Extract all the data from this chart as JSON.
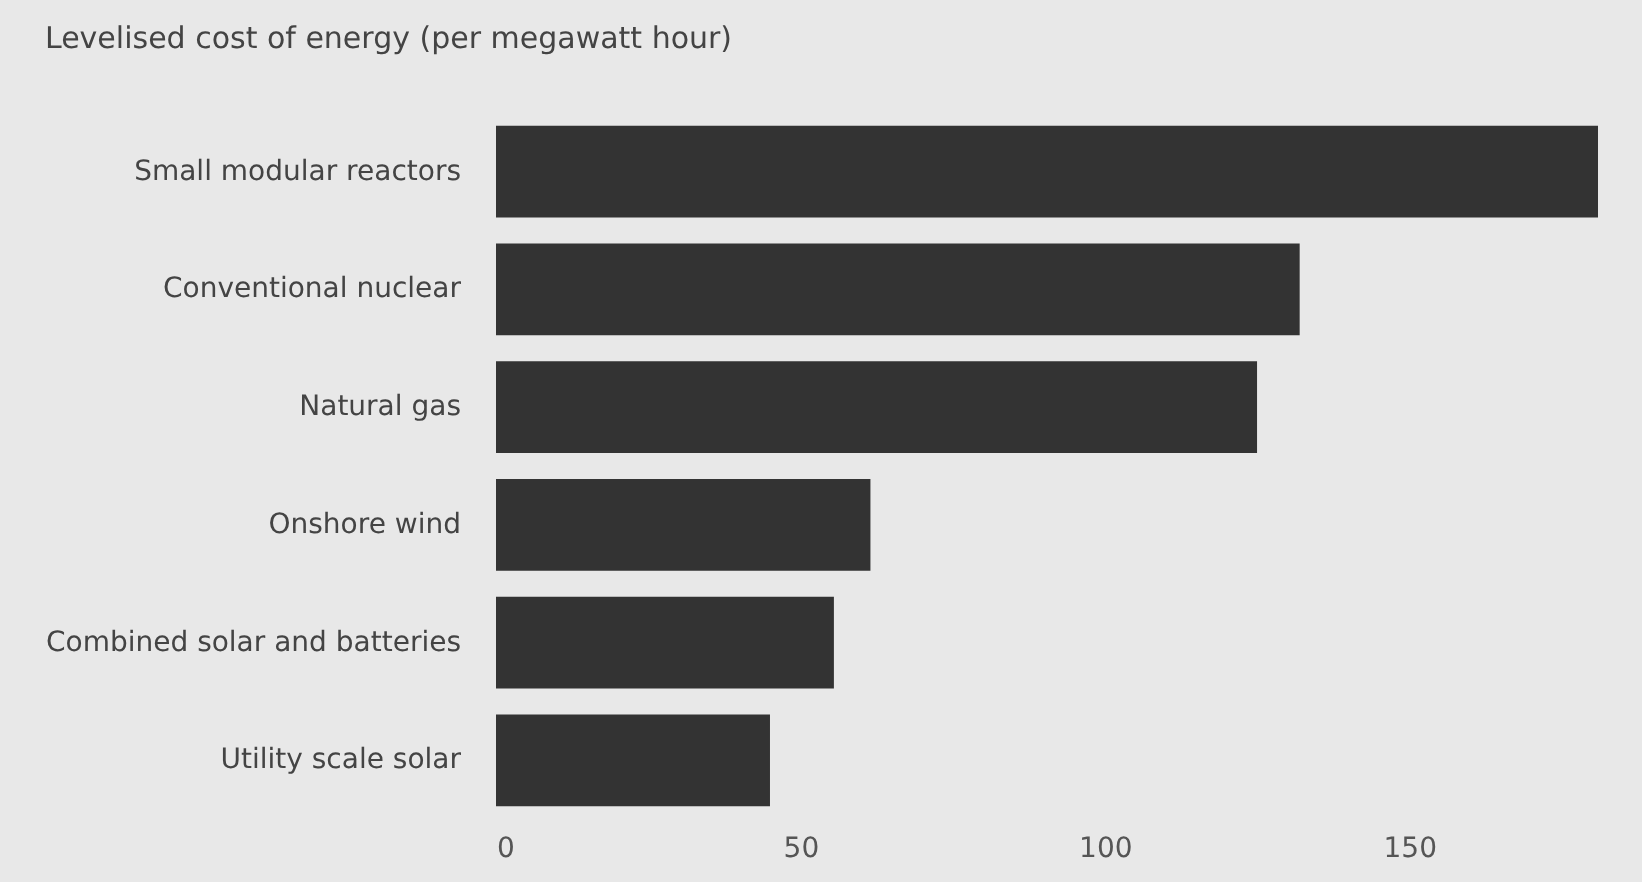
{
  "chart_data": {
    "type": "bar",
    "orientation": "horizontal",
    "title": "Levelised cost of energy (per megawatt hour)",
    "categories": [
      "Small modular reactors",
      "Conventional nuclear",
      "Natural gas",
      "Onshore wind",
      "Combined solar and batteries",
      "Utility scale solar"
    ],
    "values": [
      181,
      132,
      125,
      61.5,
      55.5,
      45
    ],
    "color": "#333333",
    "xlim": [
      0,
      181
    ],
    "xticks": [
      0,
      50,
      100,
      150
    ],
    "grid": false
  }
}
